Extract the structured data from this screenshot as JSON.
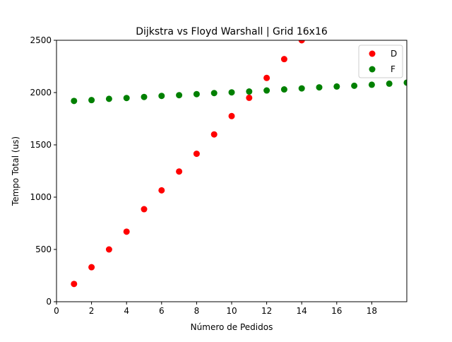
{
  "chart_data": {
    "type": "scatter",
    "title": "Dijkstra vs Floyd Warshall | Grid 16x16",
    "xlabel": "Número de Pedidos",
    "ylabel": "Tempo Total (us)",
    "xlim": [
      0,
      20
    ],
    "ylim": [
      0,
      2500
    ],
    "xticks": [
      "0",
      "2",
      "4",
      "6",
      "8",
      "10",
      "12",
      "14",
      "16",
      "18"
    ],
    "yticks": [
      "0",
      "500",
      "1000",
      "1500",
      "2000",
      "2500"
    ],
    "grid": false,
    "legend_position": "top-right",
    "series": [
      {
        "name": "D",
        "color": "#ff0000",
        "x": [
          1,
          2,
          3,
          4,
          5,
          6,
          7,
          8,
          9,
          10,
          11,
          12,
          13,
          14
        ],
        "y": [
          170,
          330,
          500,
          670,
          885,
          1065,
          1245,
          1415,
          1600,
          1775,
          1950,
          2140,
          2320,
          2500
        ]
      },
      {
        "name": "F",
        "color": "#008000",
        "x": [
          1,
          2,
          3,
          4,
          5,
          6,
          7,
          8,
          9,
          10,
          11,
          12,
          13,
          14,
          15,
          16,
          17,
          18,
          19,
          20
        ],
        "y": [
          1920,
          1928,
          1940,
          1948,
          1958,
          1968,
          1975,
          1985,
          1995,
          2002,
          2010,
          2020,
          2030,
          2040,
          2050,
          2058,
          2065,
          2075,
          2085,
          2095
        ]
      }
    ]
  }
}
